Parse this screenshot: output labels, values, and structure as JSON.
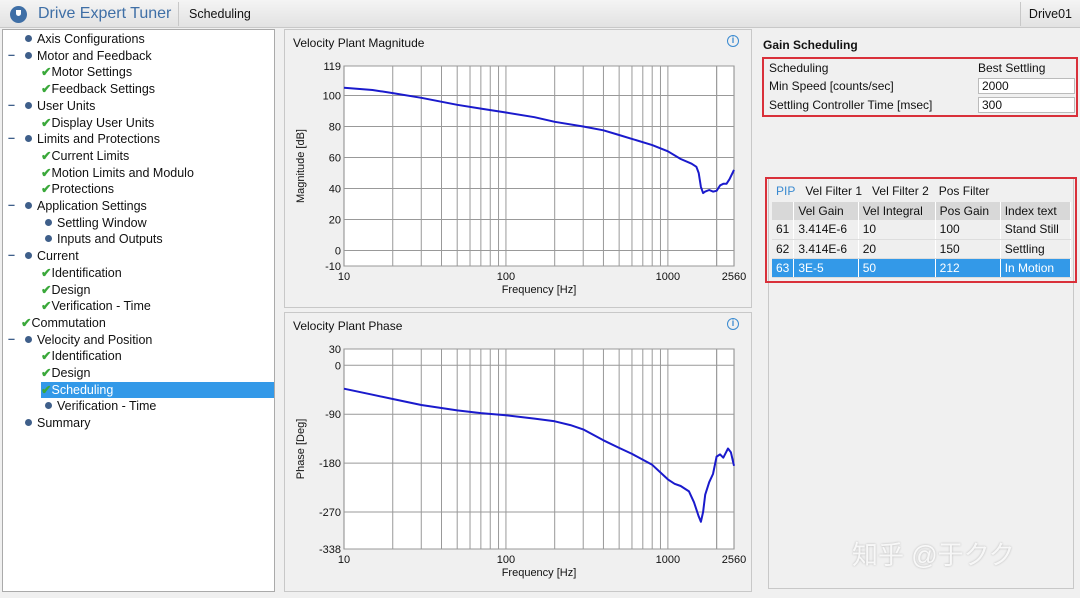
{
  "app": {
    "title": "Drive Expert Tuner",
    "breadcrumb": "Scheduling",
    "drive": "Drive01"
  },
  "tree": [
    {
      "label": "Axis Configurations",
      "level": 0,
      "mark": "dot",
      "expander": false
    },
    {
      "label": "Motor and Feedback",
      "level": 0,
      "mark": "dot",
      "expander": true
    },
    {
      "label": "Motor Settings",
      "level": 1,
      "mark": "check"
    },
    {
      "label": "Feedback Settings",
      "level": 1,
      "mark": "check"
    },
    {
      "label": "User Units",
      "level": 0,
      "mark": "dot",
      "expander": true
    },
    {
      "label": "Display User Units",
      "level": 1,
      "mark": "check"
    },
    {
      "label": "Limits and Protections",
      "level": 0,
      "mark": "dot",
      "expander": true
    },
    {
      "label": "Current Limits",
      "level": 1,
      "mark": "check"
    },
    {
      "label": "Motion Limits and Modulo",
      "level": 1,
      "mark": "check"
    },
    {
      "label": "Protections",
      "level": 1,
      "mark": "check"
    },
    {
      "label": "Application Settings",
      "level": 0,
      "mark": "dot",
      "expander": true
    },
    {
      "label": "Settling Window",
      "level": 1,
      "mark": "dot"
    },
    {
      "label": "Inputs and Outputs",
      "level": 1,
      "mark": "dot"
    },
    {
      "label": "Current",
      "level": 0,
      "mark": "dot",
      "expander": true
    },
    {
      "label": "Identification",
      "level": 1,
      "mark": "check"
    },
    {
      "label": "Design",
      "level": 1,
      "mark": "check"
    },
    {
      "label": "Verification - Time",
      "level": 1,
      "mark": "check"
    },
    {
      "label": "Commutation",
      "level": -1,
      "mark": "check"
    },
    {
      "label": "Velocity and Position",
      "level": 0,
      "mark": "dot",
      "expander": true
    },
    {
      "label": "Identification",
      "level": 1,
      "mark": "check"
    },
    {
      "label": "Design",
      "level": 1,
      "mark": "check"
    },
    {
      "label": "Scheduling",
      "level": 1,
      "mark": "check",
      "selected": true
    },
    {
      "label": "Verification - Time",
      "level": 1,
      "mark": "dot"
    },
    {
      "label": "Summary",
      "level": 0,
      "mark": "dot",
      "expander": false
    }
  ],
  "chart_data": [
    {
      "type": "line",
      "title": "Velocity Plant Magnitude",
      "xlabel": "Frequency [Hz]",
      "ylabel": "Magnitude [dB]",
      "xscale": "log",
      "xlim": [
        10,
        2560
      ],
      "ylim": [
        -10,
        119
      ],
      "xticks": [
        "10",
        "100",
        "1000",
        "2560"
      ],
      "yticks": [
        "-10",
        "0",
        "20",
        "40",
        "60",
        "80",
        "100",
        "119"
      ],
      "grid": true,
      "color": "#1a1acc",
      "x": [
        10,
        15,
        20,
        30,
        50,
        70,
        100,
        150,
        200,
        300,
        400,
        500,
        600,
        800,
        1000,
        1200,
        1400,
        1500,
        1550,
        1600,
        1650,
        1700,
        1800,
        1900,
        2000,
        2100,
        2200,
        2300,
        2400,
        2560
      ],
      "y": [
        105,
        103.5,
        101.5,
        98.5,
        94,
        91.5,
        89,
        86,
        83,
        80,
        77.5,
        74.5,
        72,
        68,
        64,
        59,
        56,
        54,
        50,
        41,
        37,
        38,
        39,
        38,
        38.5,
        42,
        43,
        43,
        46,
        52
      ]
    },
    {
      "type": "line",
      "title": "Velocity Plant Phase",
      "xlabel": "Frequency [Hz]",
      "ylabel": "Phase [Deg]",
      "xscale": "log",
      "xlim": [
        10,
        2560
      ],
      "ylim": [
        -338,
        30
      ],
      "xticks": [
        "10",
        "100",
        "1000",
        "2560"
      ],
      "yticks": [
        "-338",
        "-270",
        "-180",
        "-90",
        "0",
        "30"
      ],
      "grid": true,
      "color": "#1a1acc",
      "x": [
        10,
        15,
        20,
        30,
        50,
        70,
        100,
        150,
        200,
        250,
        300,
        400,
        500,
        600,
        800,
        1000,
        1100,
        1200,
        1350,
        1450,
        1550,
        1600,
        1650,
        1700,
        1800,
        1900,
        2000,
        2100,
        2200,
        2350,
        2450,
        2560
      ],
      "y": [
        -43,
        -54,
        -62,
        -73,
        -83,
        -88,
        -92,
        -98,
        -103,
        -110,
        -118,
        -138,
        -152,
        -163,
        -183,
        -210,
        -218,
        -222,
        -232,
        -252,
        -278,
        -288,
        -270,
        -238,
        -215,
        -200,
        -168,
        -164,
        -170,
        -153,
        -160,
        -185
      ]
    }
  ],
  "gain": {
    "title": "Gain Scheduling",
    "rows": [
      {
        "label": "Scheduling",
        "value": "Best Settling"
      },
      {
        "label": "Min Speed [counts/sec]",
        "value": "2000"
      },
      {
        "label": "Settling Controller Time [msec]",
        "value": "300"
      }
    ]
  },
  "tabs": [
    "PIP",
    "Vel Filter 1",
    "Vel Filter 2",
    "Pos Filter"
  ],
  "table": {
    "headers": [
      "",
      "Vel Gain",
      "Vel Integral",
      "Pos Gain",
      "Index text"
    ],
    "rows": [
      [
        "61",
        "3.414E-6",
        "10",
        "100",
        "Stand Still"
      ],
      [
        "62",
        "3.414E-6",
        "20",
        "150",
        "Settling"
      ],
      [
        "63",
        "3E-5",
        "50",
        "212",
        "In Motion"
      ]
    ],
    "selected_row": 2
  },
  "watermark": "知乎 @于クク"
}
